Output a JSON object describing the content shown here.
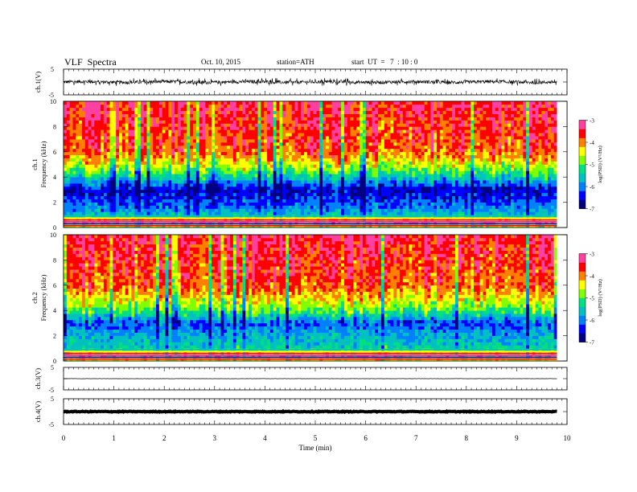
{
  "header": {
    "title": "VLF  Spectra",
    "date": "Oct. 10, 2015",
    "station": "station=ATH",
    "start": "start  UT  =   7  : 10 : 0"
  },
  "chart_data": [
    {
      "type": "line",
      "name": "ch1-waveform",
      "ylabel": "ch.1(V)",
      "ylim": [
        -5,
        5
      ],
      "yticks": [
        "5",
        "-5"
      ],
      "xlim": [
        0,
        10
      ],
      "x_end": 9.8,
      "baseline": 0,
      "amplitude_range": [
        -1.5,
        1.5
      ]
    },
    {
      "type": "heatmap",
      "name": "ch1-spectrogram",
      "ylabel": "ch.1\nFrequency  (kHz)",
      "ylabel_lines": [
        "ch.1",
        "Frequency  (kHz)"
      ],
      "ylim": [
        0,
        10
      ],
      "yticks": [
        0,
        2,
        4,
        6,
        8,
        10
      ],
      "xlim": [
        0,
        10
      ],
      "x_end": 9.8,
      "colorbar": {
        "label": "log(PSD) (V²/Hz)",
        "range": [
          -7,
          -3
        ],
        "ticks": [
          "-3",
          "-4",
          "-5",
          "-6",
          "-7"
        ]
      },
      "bands_kHz_to_logPSD": [
        [
          0,
          -5.0
        ],
        [
          0.5,
          -4.0
        ],
        [
          1.0,
          -5.6
        ],
        [
          2.0,
          -6.2
        ],
        [
          3.0,
          -6.6
        ],
        [
          4.0,
          -5.4
        ],
        [
          5.0,
          -4.5
        ],
        [
          6.0,
          -3.8
        ],
        [
          10.0,
          -3.4
        ]
      ]
    },
    {
      "type": "heatmap",
      "name": "ch2-spectrogram",
      "ylabel": "ch.2\nFrequency  (kHz)",
      "ylabel_lines": [
        "ch.2",
        "Frequency  (kHz)"
      ],
      "ylim": [
        0,
        10
      ],
      "yticks": [
        0,
        2,
        4,
        6,
        8,
        10
      ],
      "xlim": [
        0,
        10
      ],
      "x_end": 9.8,
      "colorbar": {
        "label": "log(PSD) (V²/Hz)",
        "range": [
          -7,
          -3
        ],
        "ticks": [
          "-3",
          "-4",
          "-5",
          "-6",
          "-7"
        ]
      },
      "bands_kHz_to_logPSD": [
        [
          0,
          -4.6
        ],
        [
          0.5,
          -4.2
        ],
        [
          1.0,
          -5.4
        ],
        [
          2.0,
          -5.7
        ],
        [
          3.0,
          -6.2
        ],
        [
          4.0,
          -5.0
        ],
        [
          5.0,
          -4.3
        ],
        [
          6.0,
          -3.8
        ],
        [
          10.0,
          -3.4
        ]
      ]
    },
    {
      "type": "line",
      "name": "ch3-waveform",
      "ylabel": "ch.3(V)",
      "ylim": [
        -5,
        5
      ],
      "yticks": [
        "5",
        "-5"
      ],
      "xlim": [
        0,
        10
      ],
      "x_end": 9.8,
      "baseline": 0,
      "amplitude_range": [
        -0.1,
        0.1
      ]
    },
    {
      "type": "line",
      "name": "ch4-waveform",
      "ylabel": "ch.4(V)",
      "ylim": [
        -5,
        5
      ],
      "yticks": [
        "5",
        "-5"
      ],
      "xlim": [
        0,
        10
      ],
      "x_end": 9.8,
      "baseline": 0,
      "amplitude_range": [
        -0.3,
        0.3
      ]
    }
  ],
  "xaxis": {
    "label": "Time  (min)",
    "ticks": [
      "0",
      "1",
      "2",
      "3",
      "4",
      "5",
      "6",
      "7",
      "8",
      "9",
      "10"
    ]
  },
  "colors": {
    "cmap": [
      "#000080",
      "#0000ff",
      "#0080ff",
      "#00c0c0",
      "#00e080",
      "#80ff00",
      "#ffff00",
      "#ff8000",
      "#ff0000",
      "#ff40a0"
    ],
    "background": "#ffffff",
    "axes": "#000000"
  }
}
